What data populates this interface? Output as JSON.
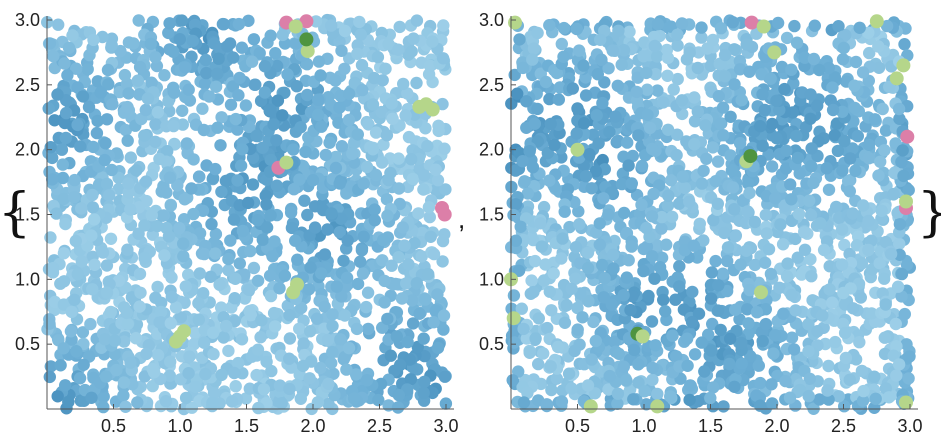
{
  "list_open_brace": "{",
  "list_separator": ",",
  "list_close_brace": "}",
  "colors": {
    "light_blue": "#9dcfe8",
    "mid_blue": "#6fb0d6",
    "dark_blue": "#3f89b8",
    "light_green": "#b5d68a",
    "dark_green": "#4f9440",
    "pink": "#dc7fa8"
  },
  "chart_data": [
    {
      "type": "scatter",
      "title": "",
      "xlabel": "",
      "ylabel": "",
      "xlim": [
        0,
        3
      ],
      "ylim": [
        0,
        3
      ],
      "xticks": [
        {
          "value": 0.5,
          "label": "0.5"
        },
        {
          "value": 1.0,
          "label": "1.0"
        },
        {
          "value": 1.5,
          "label": "1.5"
        },
        {
          "value": 2.0,
          "label": "2.0"
        },
        {
          "value": 2.5,
          "label": "2.5"
        },
        {
          "value": 3.0,
          "label": "3.0"
        }
      ],
      "yticks": [
        {
          "value": 0.5,
          "label": "0.5"
        },
        {
          "value": 1.0,
          "label": "1.0"
        },
        {
          "value": 1.5,
          "label": "1.5"
        },
        {
          "value": 2.0,
          "label": "2.0"
        },
        {
          "value": 2.5,
          "label": "2.5"
        },
        {
          "value": 3.0,
          "label": "3.0"
        }
      ],
      "grid": false,
      "legend": "none",
      "point_cloud": "dense random disk packing filling [0,3]x[0,3], mostly light blue",
      "highlights": [
        {
          "x": 1.0,
          "y": 0.56,
          "color": "light_green"
        },
        {
          "x": 0.97,
          "y": 0.52,
          "color": "light_green"
        },
        {
          "x": 1.03,
          "y": 0.6,
          "color": "light_green"
        },
        {
          "x": 1.85,
          "y": 0.9,
          "color": "light_green"
        },
        {
          "x": 1.88,
          "y": 0.96,
          "color": "light_green"
        },
        {
          "x": 1.74,
          "y": 1.86,
          "color": "pink"
        },
        {
          "x": 1.8,
          "y": 1.9,
          "color": "light_green"
        },
        {
          "x": 2.97,
          "y": 1.55,
          "color": "pink"
        },
        {
          "x": 2.99,
          "y": 1.5,
          "color": "pink"
        },
        {
          "x": 2.8,
          "y": 2.33,
          "color": "light_green"
        },
        {
          "x": 2.85,
          "y": 2.35,
          "color": "light_green"
        },
        {
          "x": 2.9,
          "y": 2.31,
          "color": "light_green"
        },
        {
          "x": 1.96,
          "y": 2.76,
          "color": "light_green"
        },
        {
          "x": 1.95,
          "y": 2.85,
          "color": "dark_green"
        },
        {
          "x": 1.8,
          "y": 2.98,
          "color": "pink"
        },
        {
          "x": 1.95,
          "y": 2.99,
          "color": "pink"
        },
        {
          "x": 1.87,
          "y": 2.95,
          "color": "light_green"
        }
      ]
    },
    {
      "type": "scatter",
      "title": "",
      "xlabel": "",
      "ylabel": "",
      "xlim": [
        0,
        3
      ],
      "ylim": [
        0,
        3
      ],
      "xticks": [
        {
          "value": 0.5,
          "label": "0.5"
        },
        {
          "value": 1.0,
          "label": "1.0"
        },
        {
          "value": 1.5,
          "label": "1.5"
        },
        {
          "value": 2.0,
          "label": "2.0"
        },
        {
          "value": 2.5,
          "label": "2.5"
        },
        {
          "value": 3.0,
          "label": "3.0"
        }
      ],
      "yticks": [
        {
          "value": 0.5,
          "label": "0.5"
        },
        {
          "value": 1.0,
          "label": "1.0"
        },
        {
          "value": 1.5,
          "label": "1.5"
        },
        {
          "value": 2.0,
          "label": "2.0"
        },
        {
          "value": 2.5,
          "label": "2.5"
        },
        {
          "value": 3.0,
          "label": "3.0"
        }
      ],
      "grid": false,
      "legend": "none",
      "point_cloud": "dense random disk packing filling [0,3]x[0,3], mostly light blue",
      "highlights": [
        {
          "x": 0.03,
          "y": 2.98,
          "color": "light_green"
        },
        {
          "x": 0.0,
          "y": 1.0,
          "color": "light_green"
        },
        {
          "x": 0.02,
          "y": 0.7,
          "color": "light_green"
        },
        {
          "x": 0.95,
          "y": 0.58,
          "color": "dark_green"
        },
        {
          "x": 0.99,
          "y": 0.56,
          "color": "light_green"
        },
        {
          "x": 0.5,
          "y": 2.0,
          "color": "light_green"
        },
        {
          "x": 1.77,
          "y": 1.91,
          "color": "light_green"
        },
        {
          "x": 1.8,
          "y": 1.95,
          "color": "dark_green"
        },
        {
          "x": 1.88,
          "y": 0.9,
          "color": "light_green"
        },
        {
          "x": 1.81,
          "y": 2.98,
          "color": "pink"
        },
        {
          "x": 1.9,
          "y": 2.95,
          "color": "light_green"
        },
        {
          "x": 1.98,
          "y": 2.75,
          "color": "light_green"
        },
        {
          "x": 2.75,
          "y": 2.99,
          "color": "light_green"
        },
        {
          "x": 2.95,
          "y": 2.65,
          "color": "light_green"
        },
        {
          "x": 2.9,
          "y": 2.55,
          "color": "light_green"
        },
        {
          "x": 2.98,
          "y": 2.1,
          "color": "pink"
        },
        {
          "x": 2.97,
          "y": 1.55,
          "color": "pink"
        },
        {
          "x": 2.97,
          "y": 1.6,
          "color": "light_green"
        },
        {
          "x": 0.6,
          "y": 0.02,
          "color": "light_green"
        },
        {
          "x": 1.1,
          "y": 0.02,
          "color": "light_green"
        },
        {
          "x": 2.97,
          "y": 0.05,
          "color": "light_green"
        }
      ]
    }
  ]
}
